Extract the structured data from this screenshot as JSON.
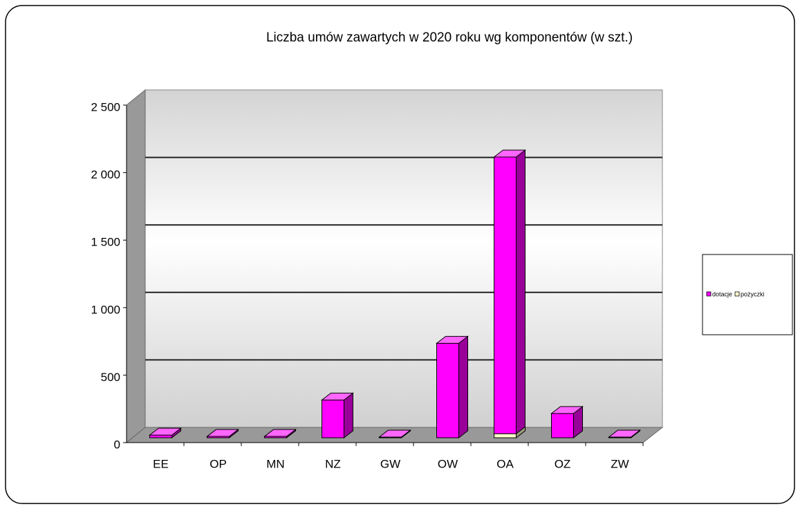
{
  "chart_data": {
    "type": "bar3d_stacked",
    "title": "Liczba umów zawartych w 2020 roku wg komponentów  (w szt.)",
    "categories": [
      "EE",
      "OP",
      "MN",
      "NZ",
      "GW",
      "OW",
      "OA",
      "OZ",
      "ZW"
    ],
    "series": [
      {
        "name": "dotacje",
        "color": "#ff00ff",
        "values": [
          20,
          10,
          10,
          280,
          5,
          700,
          2050,
          180,
          5
        ]
      },
      {
        "name": "pożyczki",
        "color": "#ffffcc",
        "values": [
          0,
          0,
          0,
          0,
          0,
          0,
          30,
          0,
          0
        ]
      }
    ],
    "ylim": [
      0,
      2500
    ],
    "yticks": [
      {
        "value": 0,
        "label": "0"
      },
      {
        "value": 500,
        "label": "500"
      },
      {
        "value": 1000,
        "label": "1 000"
      },
      {
        "value": 1500,
        "label": "1 500"
      },
      {
        "value": 2000,
        "label": "2 000"
      },
      {
        "value": 2500,
        "label": "2 500"
      }
    ],
    "grid": true,
    "legend": "right"
  }
}
